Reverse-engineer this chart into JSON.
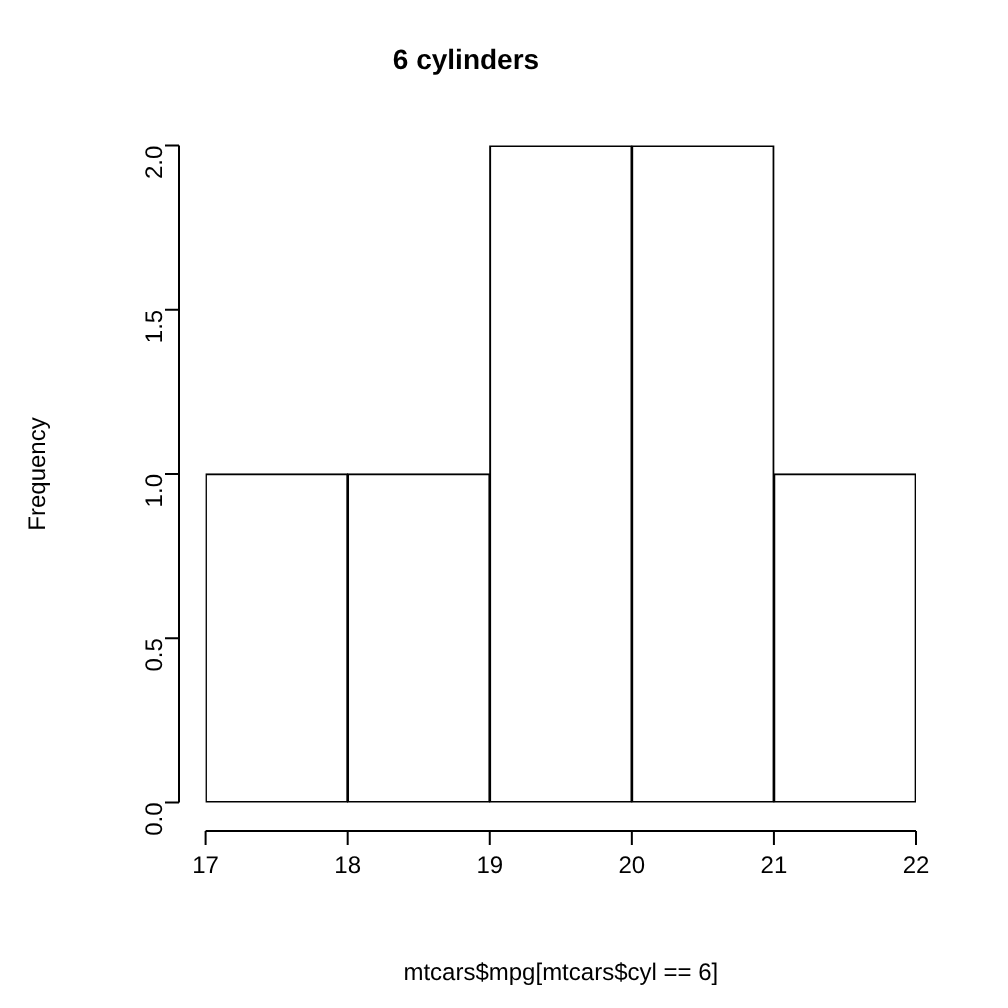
{
  "chart_data": {
    "type": "histogram",
    "title": "6 cylinders",
    "xlabel": "mtcars$mpg[mtcars$cyl == 6]",
    "ylabel": "Frequency",
    "bins": [
      17,
      18,
      19,
      20,
      21,
      22
    ],
    "values": [
      1,
      1,
      2,
      2,
      1
    ],
    "color": "#ffffff",
    "xlim": [
      17,
      22
    ],
    "xticks": [
      17,
      18,
      19,
      20,
      21,
      22
    ],
    "ylim": [
      0,
      2
    ],
    "yticks": [
      {
        "value": 0,
        "label": "0.0"
      },
      {
        "value": 0.5,
        "label": "0.5"
      },
      {
        "value": 1,
        "label": "1.0"
      },
      {
        "value": 1.5,
        "label": "1.5"
      },
      {
        "value": 2,
        "label": "2.0"
      }
    ],
    "grid": false,
    "legend": false
  }
}
